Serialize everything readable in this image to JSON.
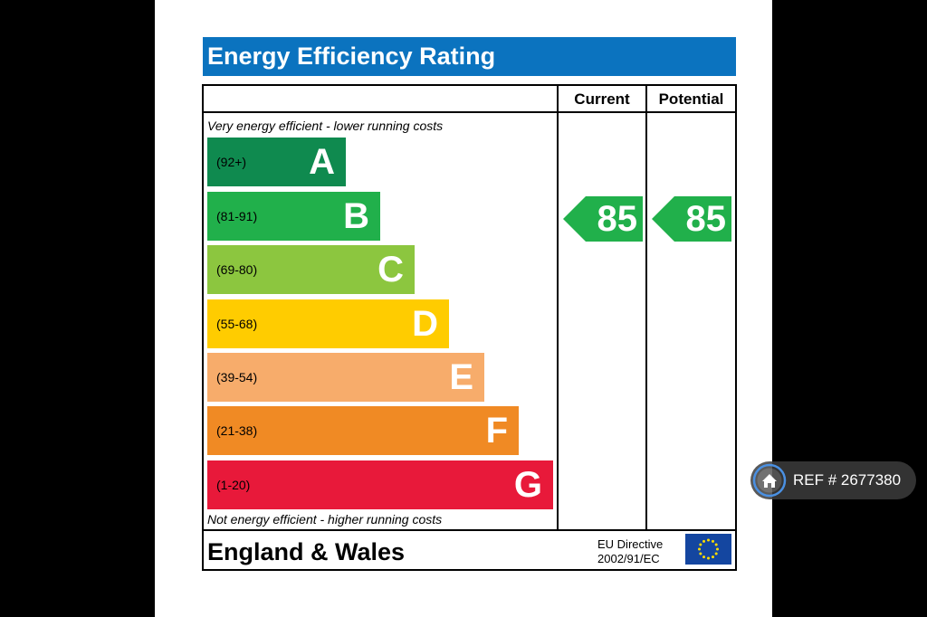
{
  "title": "Energy Efficiency Rating",
  "columns": {
    "current": "Current",
    "potential": "Potential"
  },
  "top_note": "Very energy efficient - lower running costs",
  "bottom_note": "Not energy efficient - higher running costs",
  "bands": [
    {
      "range": "(92+)",
      "letter": "A",
      "color": "#0f8a4f"
    },
    {
      "range": "(81-91)",
      "letter": "B",
      "color": "#21b04b"
    },
    {
      "range": "(69-80)",
      "letter": "C",
      "color": "#8cc63f"
    },
    {
      "range": "(55-68)",
      "letter": "D",
      "color": "#ffcc00"
    },
    {
      "range": "(39-54)",
      "letter": "E",
      "color": "#f7ac6b"
    },
    {
      "range": "(21-38)",
      "letter": "F",
      "color": "#f08a24"
    },
    {
      "range": "(1-20)",
      "letter": "G",
      "color": "#e8193a"
    }
  ],
  "ratings": {
    "current": {
      "value": "85",
      "color": "#21b04b"
    },
    "potential": {
      "value": "85",
      "color": "#21b04b"
    }
  },
  "footer": {
    "country": "England & Wales",
    "directive_line1": "EU Directive",
    "directive_line2": "2002/91/EC",
    "flag_icon": "eu-flag-icon"
  },
  "badge": {
    "icon": "home-icon",
    "text": "REF # 2677380"
  },
  "colors": {
    "title_bar": "#0b73bf",
    "background": "#000000"
  }
}
